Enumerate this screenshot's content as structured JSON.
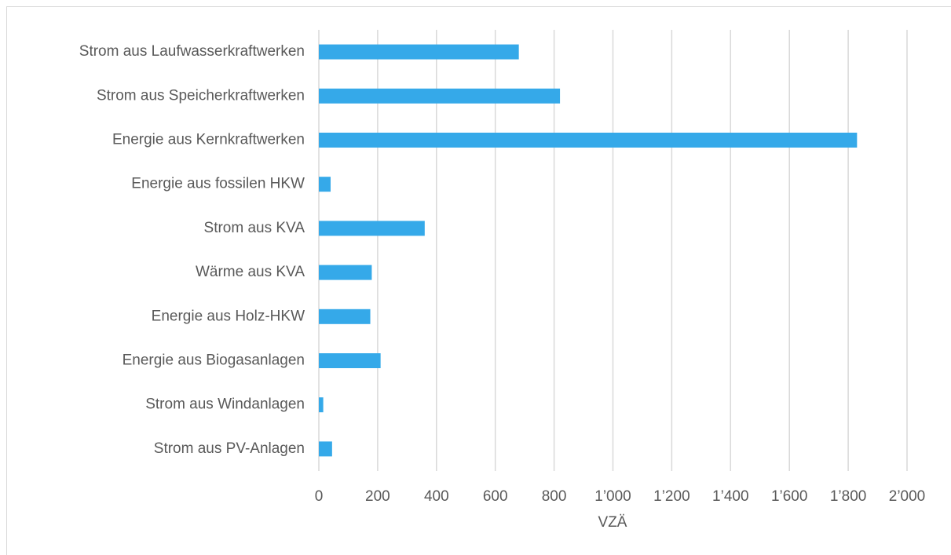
{
  "chart_data": {
    "type": "bar",
    "orientation": "horizontal",
    "x_label": "VZÄ",
    "categories": [
      "Strom aus Laufwasserkraftwerken",
      "Strom aus Speicherkraftwerken",
      "Energie aus Kernkraftwerken",
      "Energie aus fossilen HKW",
      "Strom aus KVA",
      "Wärme aus KVA",
      "Energie aus Holz-HKW",
      "Energie aus Biogasanlagen",
      "Strom aus Windanlagen",
      "Strom aus PV-Anlagen"
    ],
    "values": [
      680,
      820,
      1830,
      40,
      360,
      180,
      175,
      210,
      15,
      45
    ],
    "color": "#35a9e9",
    "xlim": [
      0,
      2000
    ],
    "xticks": [
      0,
      200,
      400,
      600,
      800,
      {
        "value": 1000,
        "label": "1’000"
      },
      {
        "value": 1200,
        "label": "1’200"
      },
      {
        "value": 1400,
        "label": "1’400"
      },
      {
        "value": 1600,
        "label": "1’600"
      },
      {
        "value": 1800,
        "label": "1’800"
      },
      {
        "value": 2000,
        "label": "2’000"
      }
    ],
    "grid": true
  }
}
